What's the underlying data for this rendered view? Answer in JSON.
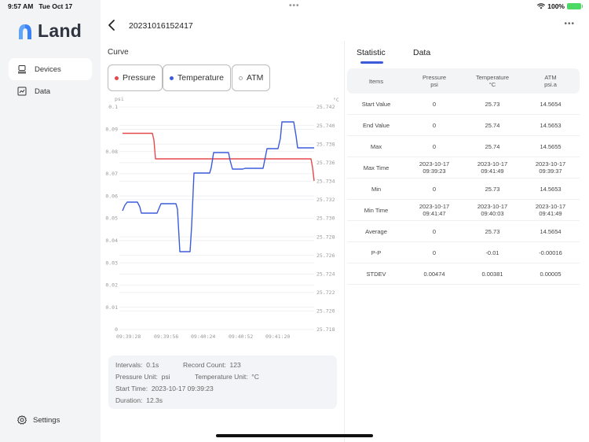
{
  "status_bar": {
    "time": "9:57 AM",
    "date": "Tue Oct 17",
    "battery": "100%"
  },
  "sidebar": {
    "logo_text": "Land",
    "items": [
      {
        "label": "Devices",
        "icon": "laptop-icon",
        "active": true
      },
      {
        "label": "Data",
        "icon": "chart-icon",
        "active": false
      }
    ],
    "settings_label": "Settings"
  },
  "header": {
    "title": "20231016152417",
    "more": "···"
  },
  "curve": {
    "label": "Curve",
    "legend": [
      {
        "label": "Pressure",
        "color": "#e5484d",
        "filled": true
      },
      {
        "label": "Temperature",
        "color": "#3b5bdb",
        "filled": true
      },
      {
        "label": "ATM",
        "color": "#aaaaaa",
        "filled": false
      }
    ]
  },
  "chart_data": {
    "type": "line",
    "title": "Curve",
    "left_axis": {
      "unit": "psi",
      "ticks": [
        "0.1",
        "0.09",
        "0.08",
        "0.07",
        "0.06",
        "0.05",
        "0.04",
        "0.03",
        "0.02",
        "0.01",
        "0"
      ],
      "range": [
        0,
        0.1
      ]
    },
    "right_axis": {
      "unit": "°C",
      "ticks": [
        "25.742",
        "25.740",
        "25.738",
        "25.736",
        "25.734",
        "25.732",
        "25.730",
        "25.728",
        "25.726",
        "25.724",
        "25.722",
        "25.720",
        "25.718"
      ],
      "range": [
        25.718,
        25.742
      ]
    },
    "x_ticks": [
      "09:39:28",
      "09:39:56",
      "09:40:24",
      "09:40:52",
      "09:41:20"
    ],
    "series": [
      {
        "name": "Pressure",
        "color": "#e5484d",
        "axis": "left",
        "values_approx": [
          0.088,
          0.088,
          0.077,
          0.077,
          0.077,
          0.077,
          0.077,
          0.067
        ]
      },
      {
        "name": "Temperature",
        "color": "#3b5bdb",
        "axis": "right",
        "values_approx": [
          25.7305,
          25.7313,
          25.7305,
          25.7315,
          25.7265,
          25.7349,
          25.736,
          25.7351,
          25.7352,
          25.737,
          25.7395,
          25.737
        ]
      }
    ]
  },
  "info": {
    "intervals_label": "Intervals:",
    "intervals": "0.1s",
    "record_count_label": "Record Count:",
    "record_count": "123",
    "pressure_unit_label": "Pressure Unit:",
    "pressure_unit": "psi",
    "temperature_unit_label": "Temperature Unit:",
    "temperature_unit": "°C",
    "start_time_label": "Start Time:",
    "start_time": "2023-10-17 09:39:23",
    "duration_label": "Duration:",
    "duration": "12.3s"
  },
  "tabs": [
    {
      "label": "Statistic",
      "active": true
    },
    {
      "label": "Data",
      "active": false
    }
  ],
  "stats": {
    "headers": [
      [
        "Items",
        ""
      ],
      [
        "Pressure",
        "psi"
      ],
      [
        "Temperature",
        "°C"
      ],
      [
        "ATM",
        "psi.a"
      ]
    ],
    "rows": [
      [
        [
          "Start Value"
        ],
        [
          "0"
        ],
        [
          "25.73"
        ],
        [
          "14.5654"
        ]
      ],
      [
        [
          "End Value"
        ],
        [
          "0"
        ],
        [
          "25.74"
        ],
        [
          "14.5653"
        ]
      ],
      [
        [
          "Max"
        ],
        [
          "0"
        ],
        [
          "25.74"
        ],
        [
          "14.5655"
        ]
      ],
      [
        [
          "Max Time"
        ],
        [
          "2023-10-17",
          "09:39:23"
        ],
        [
          "2023-10-17",
          "09:41:49"
        ],
        [
          "2023-10-17",
          "09:39:37"
        ]
      ],
      [
        [
          "Min"
        ],
        [
          "0"
        ],
        [
          "25.73"
        ],
        [
          "14.5653"
        ]
      ],
      [
        [
          "Min Time"
        ],
        [
          "2023-10-17",
          "09:41:47"
        ],
        [
          "2023-10-17",
          "09:40:03"
        ],
        [
          "2023-10-17",
          "09:41:49"
        ]
      ],
      [
        [
          "Average"
        ],
        [
          "0"
        ],
        [
          "25.73"
        ],
        [
          "14.5654"
        ]
      ],
      [
        [
          "P-P"
        ],
        [
          "0"
        ],
        [
          "-0.01"
        ],
        [
          "-0.00016"
        ]
      ],
      [
        [
          "STDEV"
        ],
        [
          "0.00474"
        ],
        [
          "0.00381"
        ],
        [
          "0.00005"
        ]
      ]
    ]
  }
}
